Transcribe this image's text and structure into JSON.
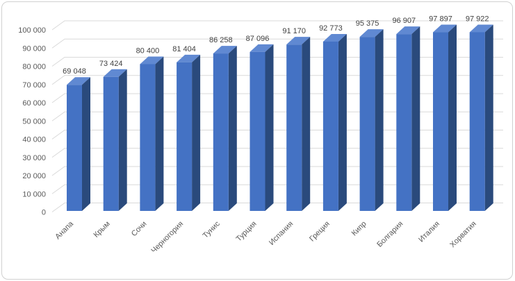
{
  "chart": {
    "background": "#ffffff",
    "border_color": "#d0d0d0"
  },
  "chart_data": {
    "type": "bar",
    "style": "3d-column",
    "title": "",
    "categories": [
      "Анапа",
      "Крым",
      "Сочи",
      "Черногория",
      "Тунис",
      "Турция",
      "Испания",
      "Греция",
      "Кипр",
      "Болгария",
      "Италия",
      "Хорватия"
    ],
    "values": [
      69048,
      73424,
      80400,
      81404,
      86258,
      87096,
      91170,
      92773,
      95375,
      96907,
      97897,
      97922
    ],
    "value_labels": [
      "69 048",
      "73 424",
      "80 400",
      "81 404",
      "86 258",
      "87 096",
      "91 170",
      "92 773",
      "95 375",
      "96 907",
      "97 897",
      "97 922"
    ],
    "xlabel": "",
    "ylabel": "",
    "y_axis": {
      "min": 0,
      "max": 100000,
      "step": 10000,
      "tick_values": [
        0,
        10000,
        20000,
        30000,
        40000,
        50000,
        60000,
        70000,
        80000,
        90000,
        100000
      ],
      "tick_labels": [
        "0",
        "10 000",
        "20 000",
        "30 000",
        "40 000",
        "50 000",
        "60 000",
        "70 000",
        "80 000",
        "90 000",
        "100 000"
      ]
    },
    "x_axis": {
      "label_rotation": -45
    },
    "grid": true,
    "legend": "none",
    "colors": {
      "bar_front": "#4472c4",
      "bar_top": "#6089d2",
      "bar_side": "#2a4a7c",
      "gridline": "#d9d9d9",
      "axis_text": "#595959",
      "data_label": "#404040"
    }
  }
}
